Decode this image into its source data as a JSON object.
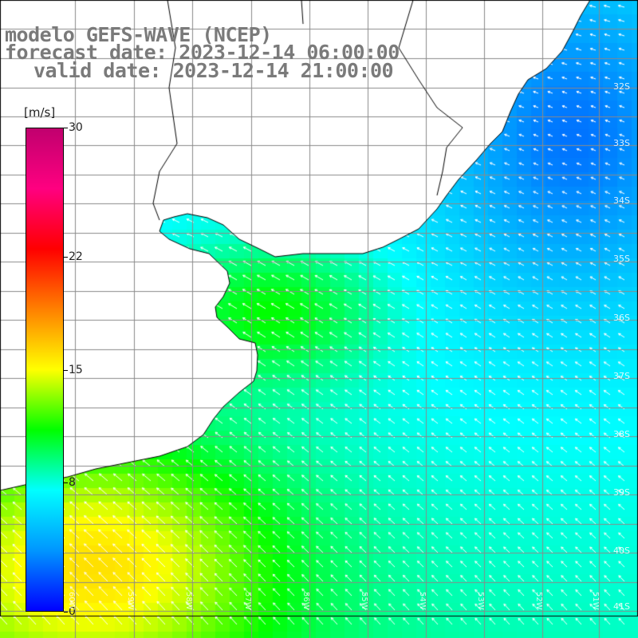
{
  "title": {
    "line1": "modelo GEFS-WAVE (NCEP)",
    "line2": "forecast date: 2023-12-14 06:00:00",
    "line3": "valid date: 2023-12-14 21:00:00"
  },
  "colorbar": {
    "unit": "[m/s]",
    "min": 0,
    "max": 30,
    "ticks": [
      "30",
      "22",
      "15",
      "8",
      "0"
    ],
    "tick_values": [
      30,
      22,
      15,
      8,
      0
    ],
    "colors": [
      "#0000ff",
      "#0096ff",
      "#00ffff",
      "#00ff00",
      "#ffff00",
      "#ff8000",
      "#ff0000",
      "#ff0080",
      "#c0006e"
    ]
  },
  "grid": {
    "lat_labels": [
      "32S",
      "33S",
      "34S",
      "35S",
      "36S",
      "37S",
      "38S",
      "39S",
      "40S",
      "41S"
    ],
    "lon_labels": [
      "60W",
      "59W",
      "58W",
      "57W",
      "56W",
      "55W",
      "54W",
      "53W",
      "52W",
      "51W"
    ]
  },
  "map": {
    "land_color": "#ffffff",
    "coast_color": "#000000",
    "grid_color": "#8a8a8a",
    "arrow_color": "#ffffff"
  }
}
